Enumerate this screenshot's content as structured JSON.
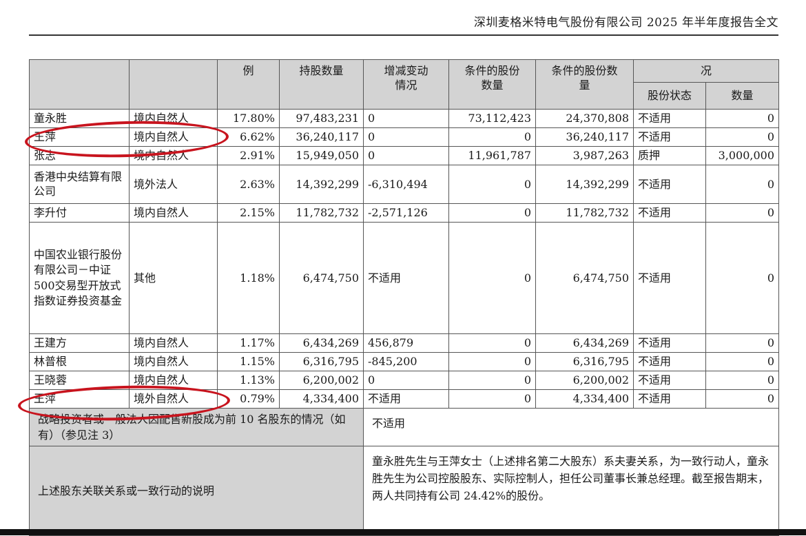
{
  "header": {
    "title": "深圳麦格米特电气股份有限公司 2025 年半年度报告全文"
  },
  "columns": {
    "ratio": "例",
    "shares": "持股数量",
    "change": "增减变动情况",
    "restricted": "条件的股份数量",
    "unrestricted": "条件的股份数量",
    "pledge": "况",
    "pledge_status": "股份状态",
    "pledge_qty": "数量"
  },
  "rows": [
    {
      "name": "童永胜",
      "type": "境内自然人",
      "ratio": "17.80%",
      "shares": "97,483,231",
      "change": "0",
      "restricted": "73,112,423",
      "unrestricted": "24,370,808",
      "status": "不适用",
      "qty": "0"
    },
    {
      "name": "王萍",
      "type": "境内自然人",
      "ratio": "6.62%",
      "shares": "36,240,117",
      "change": "0",
      "restricted": "0",
      "unrestricted": "36,240,117",
      "status": "不适用",
      "qty": "0"
    },
    {
      "name": "张志",
      "type": "境内自然人",
      "ratio": "2.91%",
      "shares": "15,949,050",
      "change": "0",
      "restricted": "11,961,787",
      "unrestricted": "3,987,263",
      "status": "质押",
      "qty": "3,000,000"
    },
    {
      "name": "香港中央结算有限公司",
      "type": "境外法人",
      "ratio": "2.63%",
      "shares": "14,392,299",
      "change": "-6,310,494",
      "restricted": "0",
      "unrestricted": "14,392,299",
      "status": "不适用",
      "qty": "0"
    },
    {
      "name": "李升付",
      "type": "境内自然人",
      "ratio": "2.15%",
      "shares": "11,782,732",
      "change": "-2,571,126",
      "restricted": "0",
      "unrestricted": "11,782,732",
      "status": "不适用",
      "qty": "0"
    },
    {
      "name": "中国农业银行股份有限公司－中证500交易型开放式指数证券投资基金",
      "type": "其他",
      "ratio": "1.18%",
      "shares": "6,474,750",
      "change": "不适用",
      "restricted": "0",
      "unrestricted": "6,474,750",
      "status": "不适用",
      "qty": "0"
    },
    {
      "name": "王建方",
      "type": "境内自然人",
      "ratio": "1.17%",
      "shares": "6,434,269",
      "change": "456,879",
      "restricted": "0",
      "unrestricted": "6,434,269",
      "status": "不适用",
      "qty": "0"
    },
    {
      "name": "林普根",
      "type": "境内自然人",
      "ratio": "1.15%",
      "shares": "6,316,795",
      "change": "-845,200",
      "restricted": "0",
      "unrestricted": "6,316,795",
      "status": "不适用",
      "qty": "0"
    },
    {
      "name": "王晓蓉",
      "type": "境内自然人",
      "ratio": "1.13%",
      "shares": "6,200,002",
      "change": "0",
      "restricted": "0",
      "unrestricted": "6,200,002",
      "status": "不适用",
      "qty": "0"
    },
    {
      "name": "王萍",
      "type": "境外自然人",
      "ratio": "0.79%",
      "shares": "4,334,400",
      "change": "不适用",
      "restricted": "0",
      "unrestricted": "4,334,400",
      "status": "不适用",
      "qty": "0"
    }
  ],
  "notes": {
    "strategic_label": "战略投资者或一般法人因配售新股成为前 10 名股东的情况（如有）（参见注 3）",
    "strategic_value": "不适用",
    "relation_label": "上述股东关联关系或一致行动的说明",
    "relation_value": "童永胜先生与王萍女士（上述排名第二大股东）系夫妻关系，为一致行动人，童永胜先生为公司控股股东、实际控制人，担任公司董事长兼总经理。截至报告期末，两人共同持有公司 24.42%的股份。"
  },
  "annotation": {
    "color": "#c8141e"
  }
}
